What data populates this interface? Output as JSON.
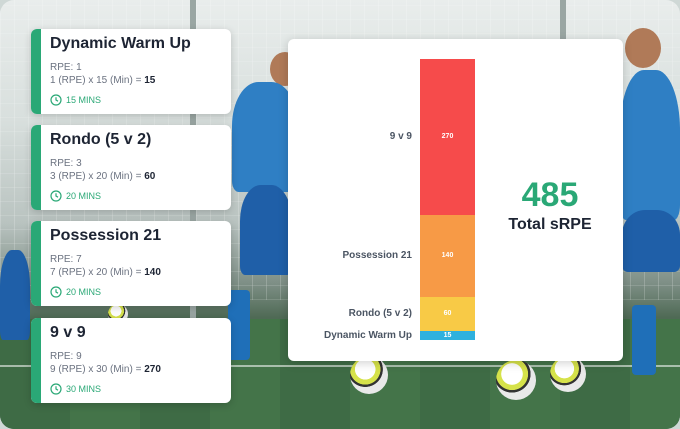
{
  "cards": [
    {
      "title": "Dynamic Warm Up",
      "rpe": "RPE: 1",
      "calc": "1 (RPE) x 15 (Min) =",
      "value": "15",
      "duration": "15 MINS"
    },
    {
      "title": "Rondo (5 v 2)",
      "rpe": "RPE: 3",
      "calc": "3 (RPE) x 20 (Min) =",
      "value": "60",
      "duration": "20 MINS"
    },
    {
      "title": "Possession 21",
      "rpe": "RPE: 7",
      "calc": "7 (RPE) x 20 (Min) =",
      "value": "140",
      "duration": "20 MINS"
    },
    {
      "title": "9 v 9",
      "rpe": "RPE: 9",
      "calc": "9 (RPE) x 30 (Min) =",
      "value": "270",
      "duration": "30 MINS"
    }
  ],
  "chart_data": {
    "type": "bar",
    "stacked": true,
    "categories": [
      "9 v 9",
      "Possession 21",
      "Rondo (5 v 2)",
      "Dynamic Warm Up"
    ],
    "values": [
      270,
      140,
      60,
      15
    ],
    "value_labels": [
      "270",
      "140",
      "60",
      "15"
    ],
    "colors": [
      "#f64b4b",
      "#f79a46",
      "#f8ca46",
      "#2fb1de"
    ],
    "total_value": "485",
    "total_label": "Total sRPE"
  },
  "icons": {
    "duration": "clock-icon"
  },
  "colors": {
    "accent": "#2aa876",
    "text": "#1d2433"
  }
}
